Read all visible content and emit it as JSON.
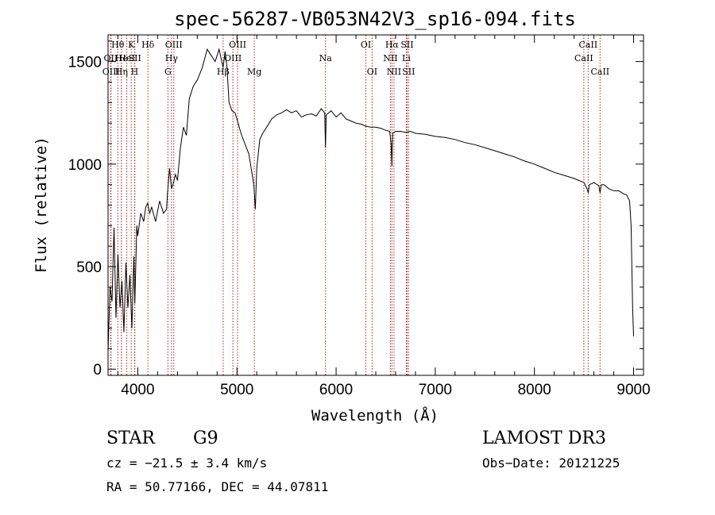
{
  "chart_data": {
    "type": "line",
    "title": "spec-56287-VB053N42V3_sp16-094.fits",
    "xlabel": "Wavelength (Å)",
    "ylabel": "Flux (relative)",
    "xlim": [
      3700,
      9100
    ],
    "ylim": [
      -30,
      1630
    ],
    "xticks": [
      4000,
      5000,
      6000,
      7000,
      8000,
      9000
    ],
    "yticks": [
      0,
      500,
      1000,
      1500
    ],
    "series": [
      {
        "x": [
          3700,
          3720,
          3740,
          3760,
          3780,
          3800,
          3820,
          3840,
          3860,
          3880,
          3900,
          3920,
          3940,
          3960,
          3970,
          3990,
          4000,
          4030,
          4060,
          4080,
          4100,
          4120,
          4140,
          4180,
          4220,
          4260,
          4290,
          4300,
          4320,
          4340,
          4360,
          4380,
          4400,
          4430,
          4460,
          4490,
          4520,
          4560,
          4600,
          4650,
          4700,
          4740,
          4780,
          4820,
          4860,
          4880,
          4900,
          4920,
          4950,
          4980,
          5000,
          5040,
          5080,
          5120,
          5150,
          5170,
          5185,
          5200,
          5230,
          5260,
          5300,
          5350,
          5400,
          5450,
          5500,
          5550,
          5600,
          5650,
          5700,
          5750,
          5800,
          5850,
          5885,
          5893,
          5900,
          5950,
          6000,
          6050,
          6100,
          6150,
          6200,
          6250,
          6300,
          6350,
          6400,
          6450,
          6500,
          6540,
          6555,
          6563,
          6570,
          6600,
          6650,
          6700,
          6750,
          6800,
          6900,
          7000,
          7100,
          7200,
          7300,
          7400,
          7500,
          7600,
          7700,
          7800,
          7900,
          8000,
          8100,
          8200,
          8300,
          8400,
          8450,
          8500,
          8530,
          8542,
          8555,
          8600,
          8650,
          8662,
          8675,
          8700,
          8750,
          8800,
          8850,
          8900,
          8930,
          8960,
          8975,
          8990,
          9000
        ],
        "y": [
          90,
          400,
          330,
          690,
          250,
          560,
          300,
          430,
          180,
          520,
          300,
          460,
          200,
          550,
          320,
          700,
          650,
          760,
          720,
          790,
          810,
          760,
          790,
          720,
          820,
          760,
          780,
          860,
          980,
          880,
          910,
          950,
          920,
          1080,
          1180,
          1140,
          1320,
          1380,
          1410,
          1470,
          1560,
          1530,
          1500,
          1560,
          1470,
          1550,
          1470,
          1300,
          1260,
          1250,
          1220,
          1150,
          1100,
          1050,
          960,
          900,
          780,
          980,
          1120,
          1150,
          1180,
          1220,
          1240,
          1250,
          1265,
          1250,
          1260,
          1230,
          1240,
          1245,
          1235,
          1270,
          1250,
          1080,
          1240,
          1260,
          1230,
          1250,
          1220,
          1210,
          1200,
          1195,
          1185,
          1180,
          1180,
          1175,
          1165,
          1160,
          1100,
          990,
          1150,
          1160,
          1160,
          1155,
          1160,
          1150,
          1145,
          1135,
          1130,
          1120,
          1105,
          1095,
          1080,
          1065,
          1050,
          1035,
          1015,
          1000,
          980,
          960,
          945,
          930,
          920,
          910,
          880,
          860,
          900,
          910,
          895,
          860,
          900,
          900,
          880,
          870,
          870,
          855,
          850,
          820,
          700,
          300,
          160
        ]
      }
    ],
    "lines": [
      {
        "label": "Hθ",
        "x": 3798,
        "row": 0
      },
      {
        "label": "OII",
        "x": 3727,
        "row": 1
      },
      {
        "label": "OIII",
        "x": 3730,
        "row": 2
      },
      {
        "label": "He",
        "x": 3835,
        "row": 1
      },
      {
        "label": "Hη",
        "x": 3835,
        "row": 2
      },
      {
        "label": "K",
        "x": 3934,
        "row": 0
      },
      {
        "label": "H",
        "x": 3968,
        "row": 2
      },
      {
        "label": "HeI",
        "x": 3889,
        "row": 1
      },
      {
        "label": "SII",
        "x": 3970,
        "row": 1
      },
      {
        "label": "Hδ",
        "x": 4102,
        "row": 0
      },
      {
        "label": "OIII",
        "x": 4363,
        "row": 0
      },
      {
        "label": "Hγ",
        "x": 4340,
        "row": 1
      },
      {
        "label": "G",
        "x": 4304,
        "row": 2
      },
      {
        "label": "OIII",
        "x": 5007,
        "row": 0
      },
      {
        "label": "OIII",
        "x": 4959,
        "row": 1
      },
      {
        "label": "Hβ",
        "x": 4861,
        "row": 2
      },
      {
        "label": "Mg",
        "x": 5175,
        "row": 2
      },
      {
        "label": "Na",
        "x": 5893,
        "row": 1
      },
      {
        "label": "OI",
        "x": 6300,
        "row": 0
      },
      {
        "label": "OI",
        "x": 6363,
        "row": 2
      },
      {
        "label": "Hα",
        "x": 6563,
        "row": 0
      },
      {
        "label": "SII",
        "x": 6716,
        "row": 0
      },
      {
        "label": "NII",
        "x": 6548,
        "row": 1
      },
      {
        "label": "Li",
        "x": 6708,
        "row": 1
      },
      {
        "label": "NII",
        "x": 6584,
        "row": 2
      },
      {
        "label": "SII",
        "x": 6731,
        "row": 2
      },
      {
        "label": "CaII",
        "x": 8542,
        "row": 0
      },
      {
        "label": "CaII",
        "x": 8498,
        "row": 1
      },
      {
        "label": "CaII",
        "x": 8662,
        "row": 2
      }
    ],
    "line_color": "#b22222",
    "spectrum_color": "#000000"
  },
  "info": {
    "object_class": "STAR",
    "subclass": "G9",
    "survey": "LAMOST DR3",
    "cz": "cz = −21.5 ± 3.4 km/s",
    "obs_date": "Obs−Date: 20121225",
    "coords": "RA =  50.77166, DEC =  44.07811"
  }
}
